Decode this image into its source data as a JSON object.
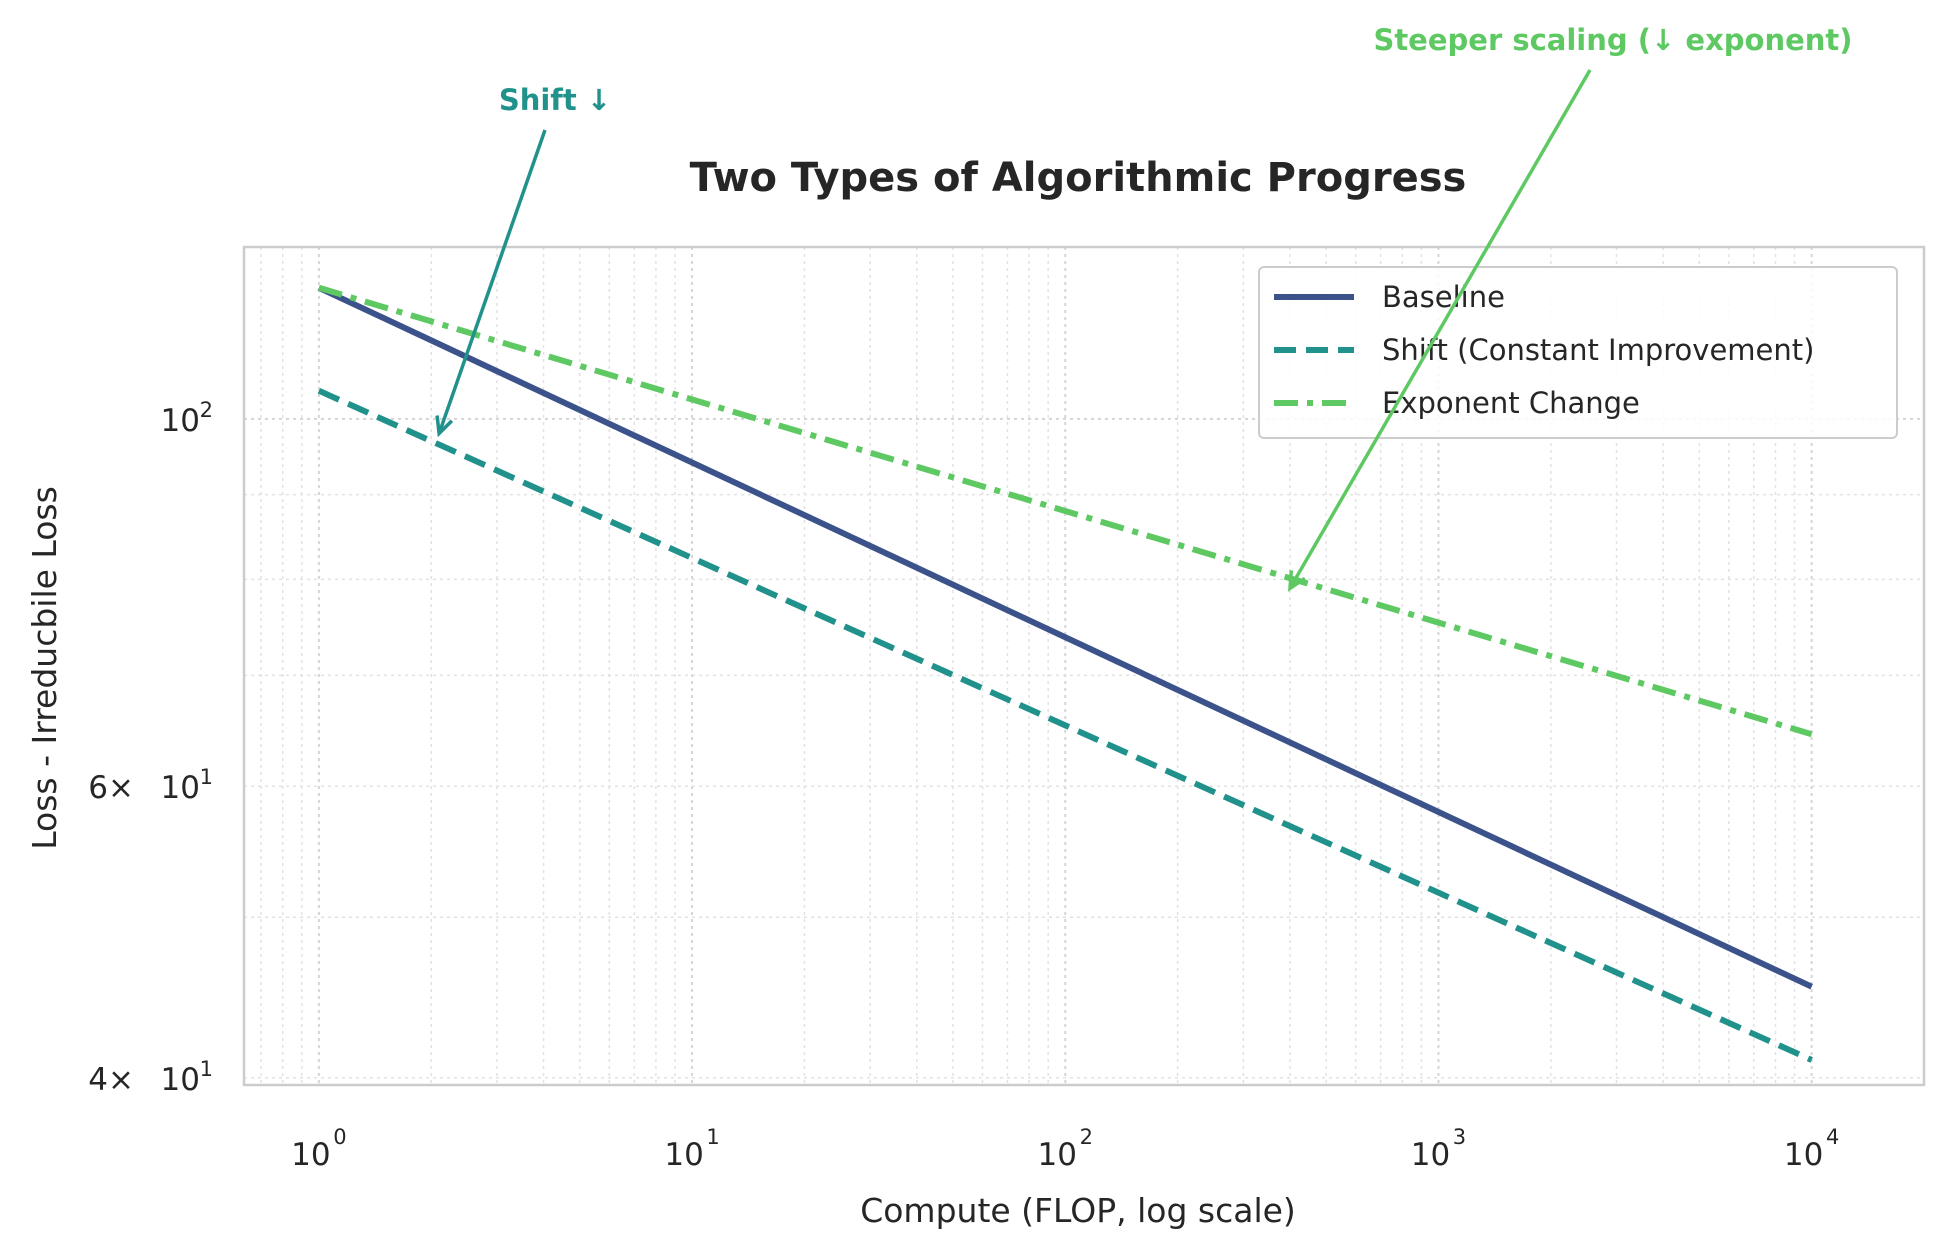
{
  "chart_data": {
    "type": "line",
    "title": "Two Types of Algorithmic Progress",
    "xlabel": "Compute (FLOP, log scale)",
    "ylabel": "Loss - Irreducbile Loss",
    "x_scale": "log",
    "y_scale": "log",
    "xlim": [
      0.63,
      20000
    ],
    "ylim": [
      39.6,
      127
    ],
    "grid": true,
    "legend_position": "top-right",
    "x_ticks": [
      {
        "value": 1,
        "base": "10",
        "exp": "0"
      },
      {
        "value": 10,
        "base": "10",
        "exp": "1"
      },
      {
        "value": 100,
        "base": "10",
        "exp": "2"
      },
      {
        "value": 1000,
        "base": "10",
        "exp": "3"
      },
      {
        "value": 10000,
        "base": "10",
        "exp": "4"
      }
    ],
    "y_ticks": [
      {
        "value": 100,
        "mantissa": "",
        "base": "10",
        "exp": "2"
      },
      {
        "value": 60,
        "mantissa": "6",
        "base": "10",
        "exp": "1"
      },
      {
        "value": 40,
        "mantissa": "4",
        "base": "10",
        "exp": "1"
      }
    ],
    "series": [
      {
        "name": "Baseline",
        "color": "#3b528b",
        "style": "solid",
        "x": [
          1,
          10000
        ],
        "y": [
          120,
          45.4
        ]
      },
      {
        "name": "Shift (Constant Improvement)",
        "color": "#21918c",
        "style": "dashed",
        "x": [
          1,
          10000
        ],
        "y": [
          104,
          41.0
        ]
      },
      {
        "name": "Exponent Change",
        "color": "#5ec962",
        "style": "dashdot",
        "x": [
          1,
          10000
        ],
        "y": [
          120,
          64.5
        ]
      }
    ],
    "annotations": [
      {
        "text": "Shift ↓",
        "color": "#21918c",
        "x": 2.1,
        "y": 98
      },
      {
        "text": "Steeper scaling (↓ exponent)",
        "color": "#5ec962",
        "x": 400,
        "y": 79
      }
    ]
  }
}
